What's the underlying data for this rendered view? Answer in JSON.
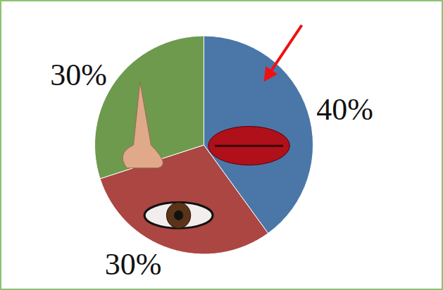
{
  "chart_data": {
    "type": "pie",
    "values": [
      40,
      30,
      30
    ],
    "value_labels": [
      "40%",
      "30%",
      "30%"
    ],
    "colors": [
      "#4a77a8",
      "#ab4642",
      "#6e9a4e"
    ],
    "data_labels": true
  }
}
